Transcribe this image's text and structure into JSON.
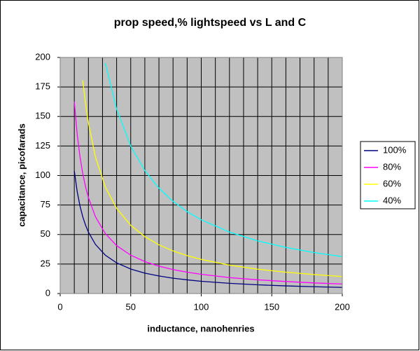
{
  "chart_data": {
    "type": "line",
    "title": "prop speed,% lightspeed vs L and C",
    "x_label": "inductance, nanohenries",
    "y_label": "capacitance, picofarads",
    "x": [
      10,
      12,
      14,
      16,
      18,
      20,
      25,
      32,
      40,
      50,
      60,
      70,
      80,
      90,
      100,
      120,
      140,
      160,
      180,
      200
    ],
    "series": [
      {
        "name": "100%",
        "color": "#000080",
        "values": [
          104,
          86.7,
          74.3,
          65,
          57.8,
          52,
          41.6,
          32.5,
          26,
          20.8,
          17.3,
          14.9,
          13,
          11.6,
          10.4,
          8.7,
          7.4,
          6.5,
          5.8,
          5.2
        ]
      },
      {
        "name": "80%",
        "color": "#ff00ff",
        "values": [
          162.5,
          135.4,
          116.1,
          101.6,
          90.3,
          81.3,
          65,
          50.8,
          40.6,
          32.5,
          27.1,
          23.2,
          20.3,
          18.1,
          16.3,
          13.5,
          11.6,
          10.2,
          9,
          8.1
        ]
      },
      {
        "name": "60%",
        "color": "#ffff00",
        "values": [
          null,
          null,
          null,
          180.6,
          160.5,
          144.5,
          115.6,
          90.3,
          72.2,
          57.8,
          48.2,
          41.3,
          36.1,
          32.1,
          28.9,
          24.1,
          20.6,
          18.1,
          16.1,
          14.4
        ]
      },
      {
        "name": "40%",
        "color": "#00ffff",
        "values": [
          null,
          null,
          null,
          null,
          null,
          null,
          null,
          195.3,
          156.3,
          125,
          104.2,
          89.3,
          78.1,
          69.4,
          62.5,
          52.1,
          44.6,
          39.1,
          34.7,
          31.3
        ]
      }
    ],
    "xlim": [
      0,
      200
    ],
    "xticks": [
      0,
      50,
      100,
      150,
      200
    ],
    "xgrid": [
      10,
      20,
      30,
      40,
      50,
      60,
      70,
      80,
      90,
      100,
      110,
      120,
      130,
      140,
      150,
      160,
      170,
      180,
      190
    ],
    "ylim": [
      0,
      200
    ],
    "yticks": [
      0,
      25,
      50,
      75,
      100,
      125,
      150,
      175,
      200
    ],
    "grid": true,
    "plot_background": "#c0c0c0",
    "legend": "right"
  }
}
